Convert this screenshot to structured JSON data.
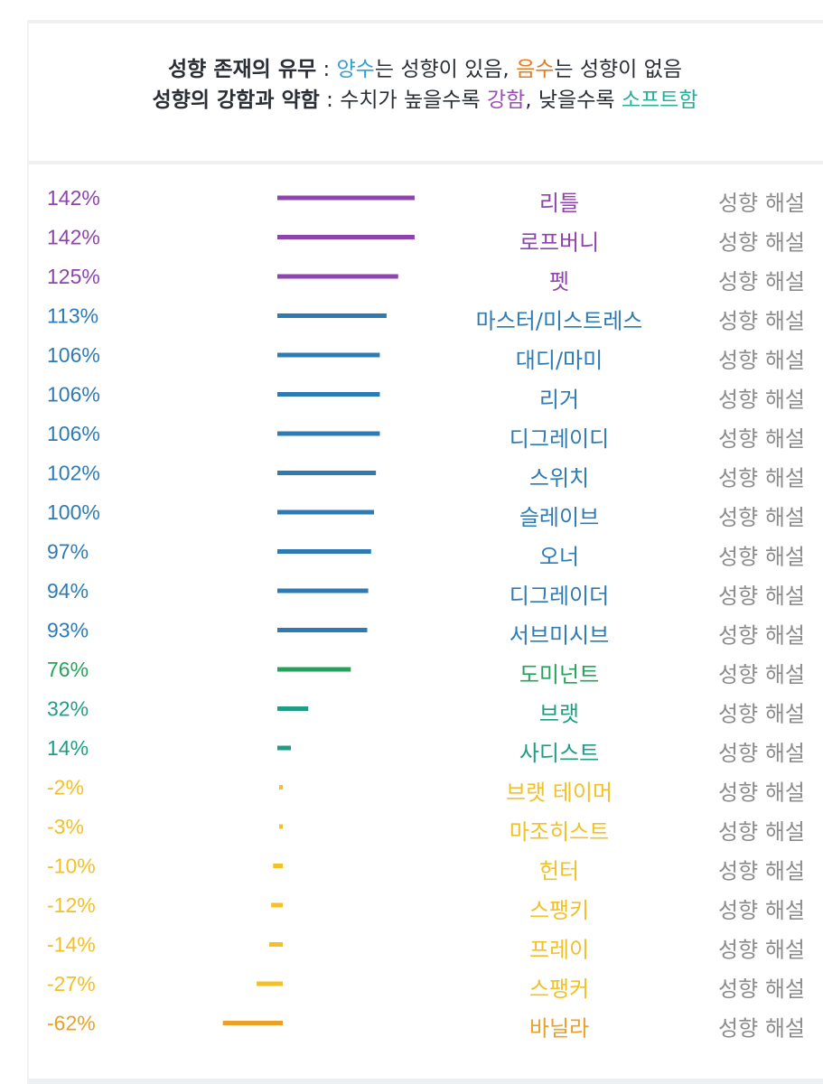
{
  "legend": {
    "line1": {
      "label": "성향 존재의 유무",
      "sep": " : ",
      "pos": "양수",
      "pos_rest": "는 성향이 있음, ",
      "neg": "음수",
      "neg_rest": "는 성향이 없음"
    },
    "line2": {
      "label": "성향의 강함과 약함",
      "sep": " : ",
      "pre": "수치가 높을수록 ",
      "strong": "강함",
      "mid": ", 낮을수록 ",
      "soft": "소프트함"
    }
  },
  "colors": {
    "purple": "#8e44ad",
    "blue": "#2e7bb3",
    "green": "#27a25a",
    "teal": "#1f9e85",
    "yellow": "#f2c027",
    "orange": "#e9a127",
    "link": "#8c8c8c",
    "pos_word": "#2f9fd8",
    "neg_word": "#e57a1f",
    "strong_word": "#9b4fb5",
    "soft_word": "#24b09a"
  },
  "chart_data": {
    "type": "bar",
    "orientation": "horizontal",
    "unit": "%",
    "link_label": "성향 해설",
    "categories": [
      "리틀",
      "로프버니",
      "펫",
      "마스터/미스트레스",
      "대디/마미",
      "리거",
      "디그레이디",
      "스위치",
      "슬레이브",
      "오너",
      "디그레이더",
      "서브미시브",
      "도미넌트",
      "브랫",
      "사디스트",
      "브랫 테이머",
      "마조히스트",
      "헌터",
      "스팽키",
      "프레이",
      "스팽커",
      "바닐라"
    ],
    "values": [
      142,
      142,
      125,
      113,
      106,
      106,
      106,
      102,
      100,
      97,
      94,
      93,
      76,
      32,
      14,
      -2,
      -3,
      -10,
      -12,
      -14,
      -27,
      -62
    ],
    "labels": [
      "142%",
      "142%",
      "125%",
      "113%",
      "106%",
      "106%",
      "106%",
      "102%",
      "100%",
      "97%",
      "94%",
      "93%",
      "76%",
      "32%",
      "14%",
      "-2%",
      "-3%",
      "-10%",
      "-12%",
      "-14%",
      "-27%",
      "-62%"
    ],
    "colors": [
      "purple",
      "purple",
      "purple",
      "blue",
      "blue",
      "blue",
      "blue",
      "blue",
      "blue",
      "blue",
      "blue",
      "blue",
      "green",
      "teal",
      "teal",
      "yellow",
      "yellow",
      "yellow",
      "yellow",
      "yellow",
      "yellow",
      "orange"
    ]
  }
}
